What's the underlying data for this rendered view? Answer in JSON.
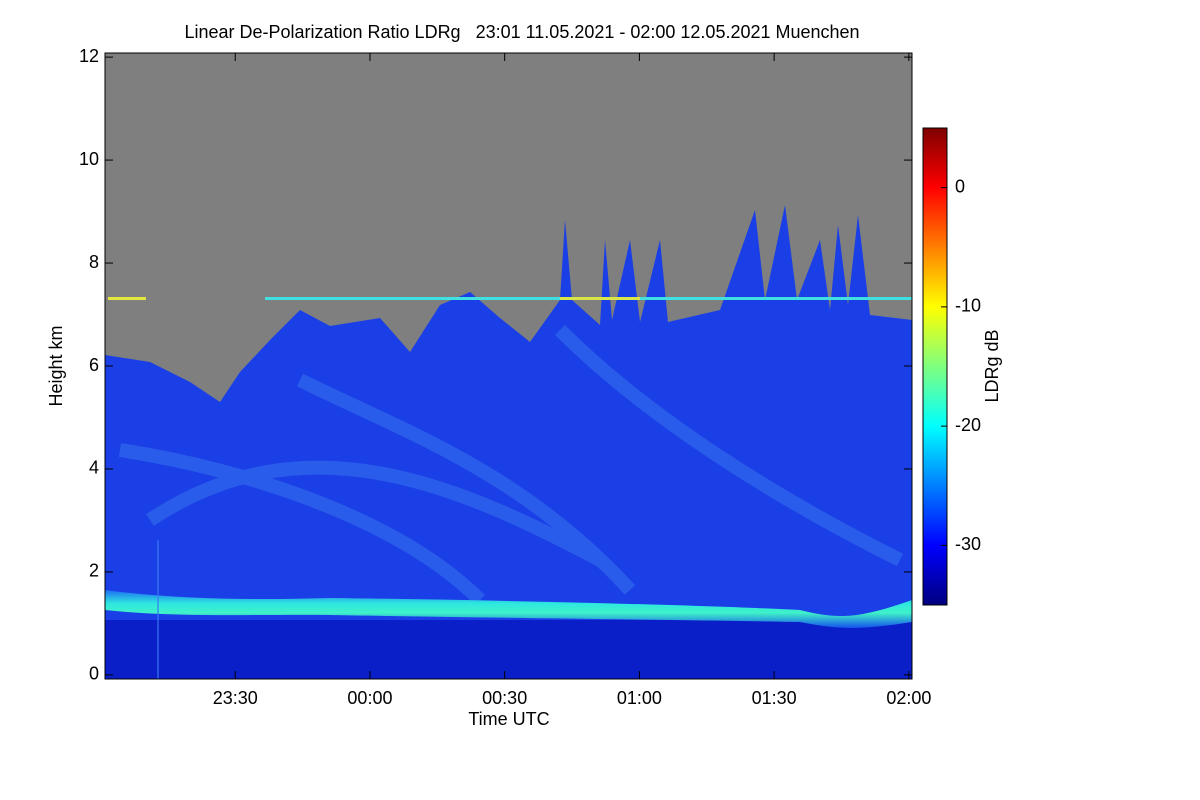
{
  "chart_data": {
    "type": "heatmap",
    "title": "Linear De-Polarization Ratio LDRg   23:01 11.05.2021 - 02:00 12.05.2021 Muenchen",
    "x_label": "Time UTC",
    "y_label": "Height km",
    "xlim": [
      1,
      180.7
    ],
    "xticks": [
      {
        "value": 30,
        "label": "23:30"
      },
      {
        "value": 60,
        "label": "00:00"
      },
      {
        "value": 90,
        "label": "00:30"
      },
      {
        "value": 120,
        "label": "01:00"
      },
      {
        "value": 150,
        "label": "01:30"
      },
      {
        "value": 180,
        "label": "02:00"
      }
    ],
    "ylim": [
      -0.08,
      12.08
    ],
    "yticks": [
      0,
      2,
      4,
      6,
      8,
      10,
      12
    ],
    "colorbar": {
      "label": "LDRg dB",
      "clim": [
        -35,
        5
      ],
      "ticks": [
        0,
        -10,
        -20,
        -30
      ],
      "colors": [
        "#00007f",
        "#0000ff",
        "#007fff",
        "#00ffff",
        "#7fff7f",
        "#ffff00",
        "#ff7f00",
        "#ff0000",
        "#7f0000"
      ]
    }
  }
}
